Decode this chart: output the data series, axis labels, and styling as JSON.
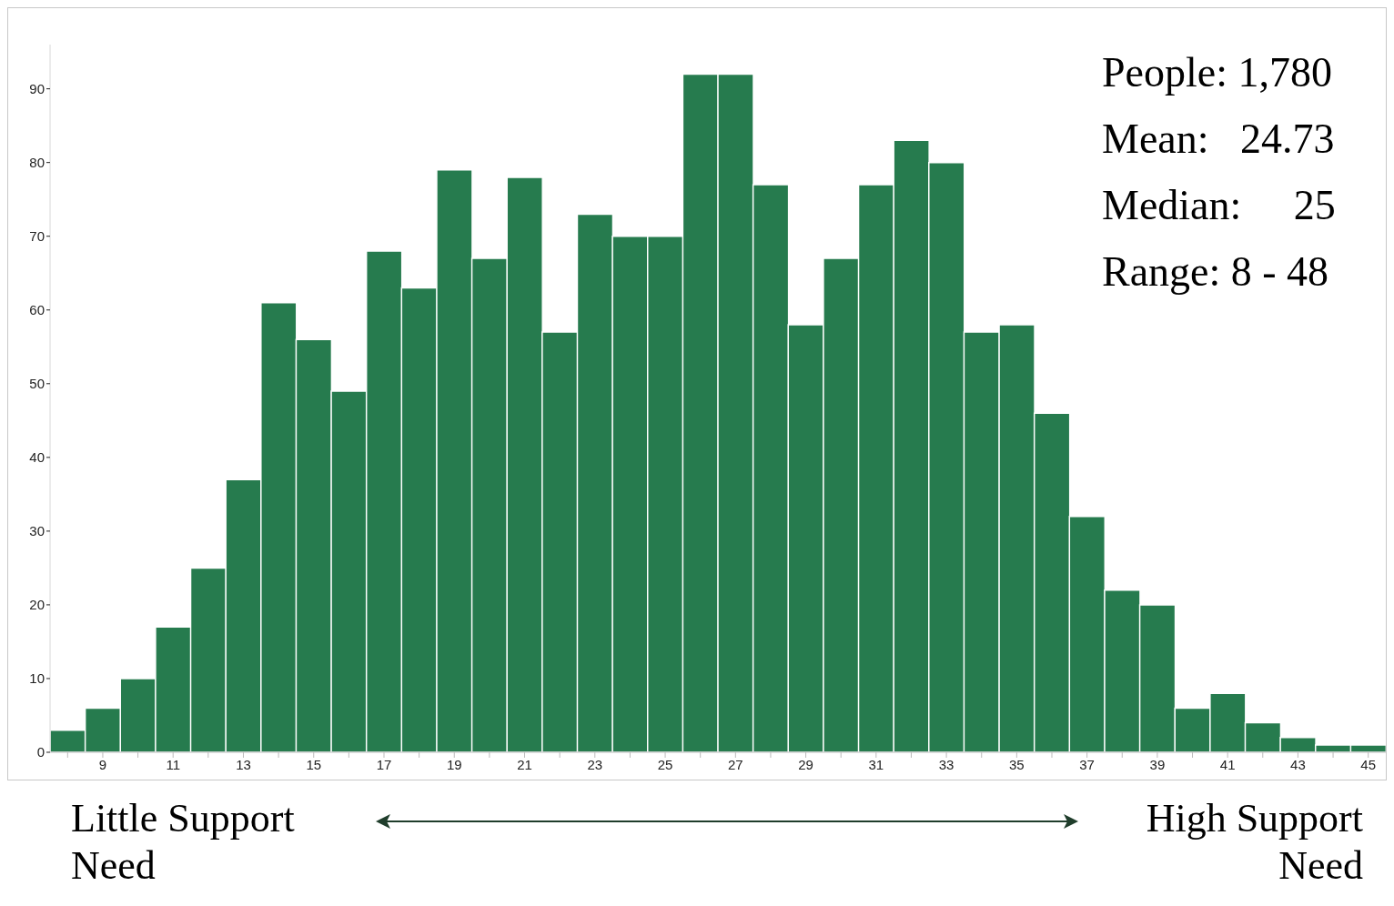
{
  "chart_data": {
    "type": "bar",
    "categories": [
      null,
      "9",
      null,
      "11",
      null,
      "13",
      null,
      "15",
      null,
      "17",
      null,
      "19",
      null,
      "21",
      null,
      "23",
      null,
      "25",
      null,
      "27",
      null,
      "29",
      null,
      "31",
      null,
      "33",
      null,
      "35",
      null,
      "37",
      null,
      "39",
      null,
      "41",
      null,
      "43",
      null,
      "45"
    ],
    "values": [
      3,
      6,
      10,
      17,
      25,
      37,
      61,
      56,
      49,
      68,
      63,
      79,
      67,
      78,
      57,
      73,
      70,
      70,
      92,
      92,
      77,
      58,
      67,
      77,
      83,
      80,
      57,
      58,
      46,
      32,
      22,
      20,
      6,
      8,
      4,
      2,
      1,
      1
    ],
    "color": "#267b4e",
    "ylim": [
      0,
      96
    ],
    "yticks": [
      0,
      10,
      20,
      30,
      40,
      50,
      60,
      70,
      80,
      90
    ],
    "grid": false,
    "legend": false,
    "annotations": [
      "People: 1,780",
      "Mean:   24.73",
      "Median:     25",
      "Range: 8 - 48",
      "Little Support Need",
      "High Support Need"
    ]
  }
}
